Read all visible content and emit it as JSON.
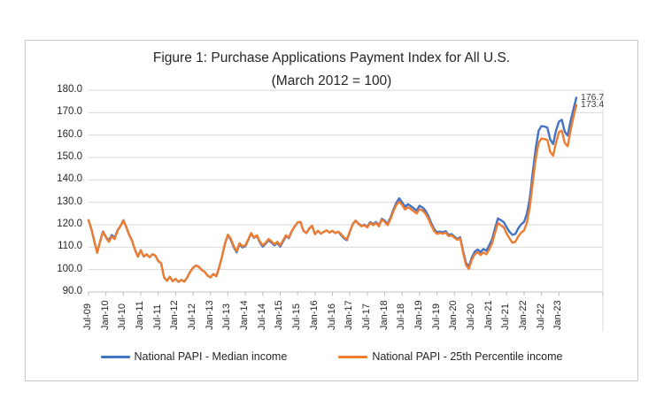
{
  "figure": {
    "title_line1": "Figure 1: Purchase Applications Payment Index for All U.S.",
    "title_line2": "(March 2012 = 100)"
  },
  "chart_data": {
    "type": "line",
    "title": "Figure 1: Purchase Applications Payment Index for All U.S.",
    "subtitle": "(March 2012 = 100)",
    "x_unit": "monthly",
    "x_start": "Jul-2009",
    "x_end": "Jul-2023",
    "x_tick_labels": [
      "Jul-09",
      "Jan-10",
      "Jul-10",
      "Jan-11",
      "Jul-11",
      "Jan-12",
      "Jul-12",
      "Jan-13",
      "Jul-13",
      "Jan-14",
      "Jul-14",
      "Jan-15",
      "Jul-15",
      "Jan-16",
      "Jul-16",
      "Jan-17",
      "Jul-17",
      "Jan-18",
      "Jul-18",
      "Jan-19",
      "Jul-19",
      "Jan-20",
      "Jul-20",
      "Jan-21",
      "Jul-21",
      "Jan-22",
      "Jul-22",
      "Jan-23"
    ],
    "y_tick_labels": [
      "180.0",
      "170.0",
      "160.0",
      "150.0",
      "140.0",
      "130.0",
      "120.0",
      "110.0",
      "100.0",
      "90.0"
    ],
    "ylim": [
      90,
      180
    ],
    "grid": "horizontal",
    "gridline_color": "#d9d9d9",
    "axis_line_color": "#bfbfbf",
    "legend_position": "bottom",
    "end_labels": [
      "176.7",
      "173.4"
    ],
    "series": [
      {
        "name": "National PAPI - Median income",
        "color": "#4472C4",
        "values": [
          122.0,
          118.0,
          112.5,
          107.5,
          112.7,
          117.0,
          114.5,
          113.0,
          115.4,
          114.2,
          117.5,
          119.5,
          122.0,
          119.0,
          115.5,
          112.8,
          108.8,
          105.8,
          108.6,
          105.8,
          106.8,
          105.5,
          106.8,
          106.3,
          103.8,
          102.8,
          96.5,
          95.0,
          96.8,
          94.8,
          95.8,
          94.5,
          95.4,
          94.6,
          96.5,
          99.0,
          100.8,
          101.8,
          101.2,
          99.8,
          99.0,
          97.3,
          96.5,
          98.0,
          97.0,
          101.0,
          106.0,
          111.5,
          115.5,
          113.3,
          110.0,
          107.7,
          111.3,
          109.9,
          110.4,
          113.2,
          116.1,
          114.1,
          115.1,
          112.1,
          110.2,
          111.5,
          113.1,
          112.1,
          110.8,
          111.9,
          110.2,
          112.5,
          114.9,
          114.0,
          117.1,
          119.2,
          121.0,
          121.3,
          117.3,
          116.3,
          118.3,
          119.5,
          115.8,
          117.3,
          116.0,
          116.8,
          117.5,
          116.5,
          117.3,
          116.3,
          116.9,
          115.4,
          113.9,
          113.1,
          117.0,
          120.3,
          121.8,
          120.5,
          119.5,
          120.0,
          119.0,
          121.2,
          120.2,
          121.2,
          119.7,
          122.7,
          121.8,
          120.4,
          123.2,
          126.8,
          129.8,
          131.8,
          130.0,
          128.0,
          129.2,
          128.3,
          127.3,
          126.3,
          128.5,
          127.7,
          126.3,
          124.0,
          120.8,
          118.2,
          116.6,
          117.0,
          116.6,
          117.1,
          115.5,
          115.8,
          114.7,
          113.7,
          114.4,
          108.3,
          103.0,
          101.2,
          105.4,
          108.0,
          109.0,
          107.8,
          109.2,
          108.4,
          110.8,
          113.6,
          118.5,
          122.8,
          122.0,
          121.2,
          118.8,
          116.8,
          115.5,
          115.9,
          118.4,
          120.2,
          121.3,
          125.0,
          132.0,
          143.5,
          154.0,
          162.0,
          164.0,
          163.8,
          163.4,
          158.0,
          156.0,
          162.0,
          166.0,
          166.8,
          161.5,
          159.8,
          166.2,
          171.5,
          176.7
        ]
      },
      {
        "name": "National PAPI - 25th Percentile income",
        "color": "#ED7D31",
        "values": [
          122.0,
          118.0,
          112.5,
          107.5,
          112.5,
          116.8,
          114.3,
          112.4,
          114.8,
          113.6,
          117.3,
          119.5,
          121.8,
          119.0,
          115.5,
          112.8,
          108.8,
          105.8,
          108.6,
          105.8,
          106.8,
          105.5,
          106.8,
          106.3,
          103.8,
          102.8,
          96.5,
          95.0,
          96.8,
          94.8,
          95.8,
          94.5,
          95.4,
          94.6,
          96.5,
          99.0,
          100.8,
          101.8,
          101.2,
          99.8,
          99.0,
          97.3,
          96.5,
          98.0,
          97.0,
          101.0,
          106.0,
          111.5,
          115.5,
          113.8,
          110.5,
          108.2,
          111.8,
          110.4,
          110.8,
          113.5,
          116.3,
          114.3,
          115.3,
          112.5,
          110.8,
          112.0,
          113.6,
          112.6,
          111.3,
          112.4,
          110.8,
          113.0,
          115.3,
          114.3,
          117.3,
          119.3,
          121.0,
          121.3,
          117.3,
          116.3,
          118.3,
          119.5,
          115.8,
          117.3,
          116.0,
          116.8,
          117.5,
          116.5,
          117.3,
          116.3,
          116.9,
          115.8,
          114.3,
          113.5,
          117.0,
          120.3,
          121.8,
          120.3,
          119.3,
          119.8,
          118.8,
          120.8,
          119.8,
          120.8,
          119.3,
          122.3,
          121.3,
          119.8,
          122.5,
          126.0,
          128.8,
          130.3,
          128.8,
          126.8,
          127.8,
          127.0,
          126.0,
          125.0,
          127.0,
          126.3,
          125.0,
          122.8,
          119.8,
          117.3,
          115.9,
          116.4,
          116.0,
          116.5,
          114.9,
          115.3,
          114.2,
          113.2,
          113.9,
          107.5,
          102.0,
          100.3,
          104.3,
          106.8,
          107.8,
          106.5,
          107.6,
          106.8,
          109.0,
          111.8,
          116.5,
          120.8,
          119.8,
          118.8,
          116.0,
          113.8,
          112.0,
          112.4,
          114.8,
          116.5,
          117.5,
          121.0,
          128.0,
          139.0,
          149.5,
          156.5,
          158.5,
          158.2,
          157.8,
          152.5,
          150.8,
          156.5,
          161.3,
          162.0,
          156.5,
          155.0,
          162.0,
          168.0,
          173.4
        ]
      }
    ]
  }
}
